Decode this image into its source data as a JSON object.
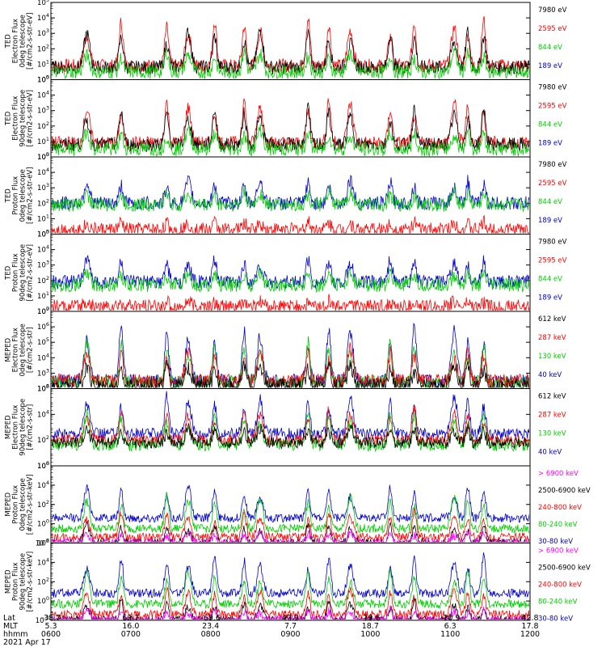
{
  "chart_data": [
    {
      "type": "line",
      "ylabel_lines": [
        "TED",
        "Electron Flux",
        "0deg telescope",
        "[#/cm2-s-str-eV]"
      ],
      "yscale": "log",
      "ylim_exp": [
        0,
        5
      ],
      "ytick_labels": [
        {
          "b": "10",
          "e": "0"
        },
        {
          "b": "10",
          "e": "1"
        },
        {
          "b": "10",
          "e": "2"
        },
        {
          "b": "10",
          "e": "3"
        },
        {
          "b": "10",
          "e": "4"
        },
        {
          "b": "10",
          "e": "5"
        }
      ],
      "legend": [
        {
          "label": "7980 eV",
          "color": "#000000"
        },
        {
          "label": "2595 eV",
          "color": "#ff0000"
        },
        {
          "label": "844 eV",
          "color": "#00cc00"
        },
        {
          "label": "189 eV",
          "color": "#0000cc"
        }
      ],
      "series": [
        {
          "color": "#ff0000",
          "base": 0.9,
          "amp": 3.2
        },
        {
          "color": "#000000",
          "base": 0.8,
          "amp": 2.5
        },
        {
          "color": "#00cc00",
          "base": 0.5,
          "amp": 1.4
        }
      ]
    },
    {
      "type": "line",
      "ylabel_lines": [
        "TED",
        "Electron Flux",
        "90deg telescope",
        "[#/cm2-s-str-eV]"
      ],
      "yscale": "log",
      "ylim_exp": [
        0,
        5
      ],
      "ytick_labels": [
        {
          "b": "10",
          "e": "0"
        },
        {
          "b": "10",
          "e": "1"
        },
        {
          "b": "10",
          "e": "2"
        },
        {
          "b": "10",
          "e": "3"
        },
        {
          "b": "10",
          "e": "4"
        },
        {
          "b": "10",
          "e": "5"
        }
      ],
      "legend": [
        {
          "label": "7980 eV",
          "color": "#000000"
        },
        {
          "label": "2595 eV",
          "color": "#ff0000"
        },
        {
          "label": "844 eV",
          "color": "#00cc00"
        },
        {
          "label": "189 eV",
          "color": "#0000cc"
        }
      ],
      "series": [
        {
          "color": "#ff0000",
          "base": 0.9,
          "amp": 3.0
        },
        {
          "color": "#000000",
          "base": 0.8,
          "amp": 2.5
        },
        {
          "color": "#00cc00",
          "base": 0.5,
          "amp": 1.3
        }
      ]
    },
    {
      "type": "line",
      "ylabel_lines": [
        "TED",
        "Proton Flux",
        "0deg telescope",
        "[#/cm2-s-str-eV]"
      ],
      "yscale": "log",
      "ylim_exp": [
        0,
        5
      ],
      "ytick_labels": [
        {
          "b": "10",
          "e": "0"
        },
        {
          "b": "10",
          "e": "1"
        },
        {
          "b": "10",
          "e": "2"
        },
        {
          "b": "10",
          "e": "3"
        },
        {
          "b": "10",
          "e": "4"
        },
        {
          "b": "10",
          "e": "5"
        }
      ],
      "legend": [
        {
          "label": "7980 eV",
          "color": "#000000"
        },
        {
          "label": "2595 eV",
          "color": "#ff0000"
        },
        {
          "label": "844 eV",
          "color": "#00cc00"
        },
        {
          "label": "189 eV",
          "color": "#0000cc"
        }
      ],
      "series": [
        {
          "color": "#0000cc",
          "base": 2.0,
          "amp": 1.6
        },
        {
          "color": "#00cc00",
          "base": 1.9,
          "amp": 0.9
        },
        {
          "color": "#ff0000",
          "base": 0.3,
          "amp": 0.5
        }
      ]
    },
    {
      "type": "line",
      "ylabel_lines": [
        "TED",
        "Proton Flux",
        "90deg telescope",
        "[#/cm2-s-str-eV]"
      ],
      "yscale": "log",
      "ylim_exp": [
        0,
        5
      ],
      "ytick_labels": [
        {
          "b": "10",
          "e": "0"
        },
        {
          "b": "10",
          "e": "1"
        },
        {
          "b": "10",
          "e": "2"
        },
        {
          "b": "10",
          "e": "3"
        },
        {
          "b": "10",
          "e": "4"
        },
        {
          "b": "10",
          "e": "5"
        }
      ],
      "legend": [
        {
          "label": "7980 eV",
          "color": "#000000"
        },
        {
          "label": "2595 eV",
          "color": "#ff0000"
        },
        {
          "label": "844 eV",
          "color": "#00cc00"
        },
        {
          "label": "189 eV",
          "color": "#0000cc"
        }
      ],
      "series": [
        {
          "color": "#0000cc",
          "base": 1.9,
          "amp": 1.6
        },
        {
          "color": "#00cc00",
          "base": 1.7,
          "amp": 0.9
        },
        {
          "color": "#ff0000",
          "base": 0.3,
          "amp": 0.4
        }
      ]
    },
    {
      "type": "line",
      "ylabel_lines": [
        "MEPED",
        "Electron Flux",
        "0deg telescope",
        "[#/cm2-s-str]"
      ],
      "yscale": "log",
      "ylim_exp": [
        2,
        7
      ],
      "ytick_labels": [
        {
          "b": "10",
          "e": "2"
        },
        {
          "b": "10",
          "e": "3"
        },
        {
          "b": "10",
          "e": "4"
        },
        {
          "b": "10",
          "e": "5"
        },
        {
          "b": "10",
          "e": "6"
        },
        {
          "b": "10",
          "e": "7"
        }
      ],
      "legend": [
        {
          "label": "612 keV",
          "color": "#000000"
        },
        {
          "label": "287 keV",
          "color": "#ff0000"
        },
        {
          "label": "130 keV",
          "color": "#00cc00"
        },
        {
          "label": "40 keV",
          "color": "#0000cc"
        }
      ],
      "series": [
        {
          "color": "#0000cc",
          "base": 2.5,
          "amp": 3.8
        },
        {
          "color": "#00cc00",
          "base": 2.4,
          "amp": 2.8
        },
        {
          "color": "#ff0000",
          "base": 2.5,
          "amp": 2.2
        },
        {
          "color": "#000000",
          "base": 2.2,
          "amp": 1.5
        }
      ]
    },
    {
      "type": "line",
      "ylabel_lines": [
        "MEPED",
        "Electron Flux",
        "90deg telescope",
        "[#/cm2-s-str]"
      ],
      "yscale": "log",
      "ylim_exp": [
        0,
        6
      ],
      "ytick_labels": [
        {
          "b": "10",
          "e": "0"
        },
        {
          "b": "10",
          "e": "2"
        },
        {
          "b": "10",
          "e": "4"
        },
        {
          "b": "10",
          "e": "6"
        }
      ],
      "legend": [
        {
          "label": "612 keV",
          "color": "#000000"
        },
        {
          "label": "287 keV",
          "color": "#ff0000"
        },
        {
          "label": "130 keV",
          "color": "#00cc00"
        },
        {
          "label": "40 keV",
          "color": "#0000cc"
        }
      ],
      "series": [
        {
          "color": "#0000cc",
          "base": 2.5,
          "amp": 3.0
        },
        {
          "color": "#ff0000",
          "base": 2.0,
          "amp": 2.5
        },
        {
          "color": "#00cc00",
          "base": 1.6,
          "amp": 2.6
        },
        {
          "color": "#000000",
          "base": 1.8,
          "amp": 1.2
        }
      ]
    },
    {
      "type": "line",
      "ylabel_lines": [
        "MEPED",
        "Proton Flux",
        "0deg telescope",
        "[#/cm2-s-str-keV]"
      ],
      "yscale": "log",
      "ylim_exp": [
        -2,
        6
      ],
      "ytick_labels": [
        {
          "b": "10",
          "e": "-2"
        },
        {
          "b": "10",
          "e": "0"
        },
        {
          "b": "10",
          "e": "2"
        },
        {
          "b": "10",
          "e": "4"
        },
        {
          "b": "10",
          "e": "6"
        }
      ],
      "legend": [
        {
          "label": "> 6900 keV",
          "color": "#ff00ff"
        },
        {
          "label": "2500-6900 keV",
          "color": "#000000"
        },
        {
          "label": "240-800 keV",
          "color": "#ff0000"
        },
        {
          "label": "80-240 keV",
          "color": "#00cc00"
        },
        {
          "label": "30-80 keV",
          "color": "#0000cc"
        }
      ],
      "series": [
        {
          "color": "#0000cc",
          "base": 0.6,
          "amp": 3.4
        },
        {
          "color": "#00cc00",
          "base": -0.5,
          "amp": 3.5
        },
        {
          "color": "#ff0000",
          "base": -1.4,
          "amp": 2.8
        },
        {
          "color": "#000000",
          "base": -2.0,
          "amp": 2.0
        },
        {
          "color": "#ff00ff",
          "base": -2.0,
          "amp": 1.2
        }
      ]
    },
    {
      "type": "line",
      "ylabel_lines": [
        "MEPED",
        "Proton Flux",
        "90deg telescope",
        "[#/cm2-s-str-keV]"
      ],
      "yscale": "log",
      "ylim_exp": [
        -2,
        6
      ],
      "ytick_labels": [
        {
          "b": "10",
          "e": "-2"
        },
        {
          "b": "10",
          "e": "0"
        },
        {
          "b": "10",
          "e": "2"
        },
        {
          "b": "10",
          "e": "4"
        },
        {
          "b": "10",
          "e": "6"
        }
      ],
      "legend": [
        {
          "label": "> 6900 keV",
          "color": "#ff00ff"
        },
        {
          "label": "2500-6900 keV",
          "color": "#000000"
        },
        {
          "label": "240-800 keV",
          "color": "#ff0000"
        },
        {
          "label": "80-240 keV",
          "color": "#00cc00"
        },
        {
          "label": "30-80 keV",
          "color": "#0000cc"
        }
      ],
      "series": [
        {
          "color": "#0000cc",
          "base": 0.8,
          "amp": 4.0
        },
        {
          "color": "#00cc00",
          "base": -0.3,
          "amp": 3.5
        },
        {
          "color": "#ff0000",
          "base": -1.4,
          "amp": 2.8
        },
        {
          "color": "#000000",
          "base": -2.0,
          "amp": 2.0
        },
        {
          "color": "#ff00ff",
          "base": -2.0,
          "amp": 1.2
        }
      ]
    }
  ],
  "x_axis": {
    "row_labels": [
      "Lat",
      "MLT",
      "hhmm",
      "2021 Apr 17"
    ],
    "ticks": [
      {
        "lat": "-38.7",
        "mlt": "5.3",
        "hhmm": "0600"
      },
      {
        "lat": "62.7",
        "mlt": "16.0",
        "hhmm": "0700"
      },
      {
        "lat": "-69.6",
        "mlt": "23.4",
        "hhmm": "0800"
      },
      {
        "lat": "47.9",
        "mlt": "7.7",
        "hhmm": "0900"
      },
      {
        "lat": "-19.6",
        "mlt": "18.7",
        "hhmm": "1000"
      },
      {
        "lat": "-10.9",
        "mlt": "6.3",
        "hhmm": "1100"
      },
      {
        "lat": "42.8",
        "mlt": "17.8",
        "hhmm": "1200"
      }
    ]
  },
  "time_range_hours": [
    6,
    12
  ],
  "pass_centers_hours": [
    6.45,
    6.88,
    7.45,
    7.72,
    8.05,
    8.42,
    8.62,
    9.22,
    9.48,
    9.75,
    10.25,
    10.55,
    11.05,
    11.22,
    11.42
  ]
}
